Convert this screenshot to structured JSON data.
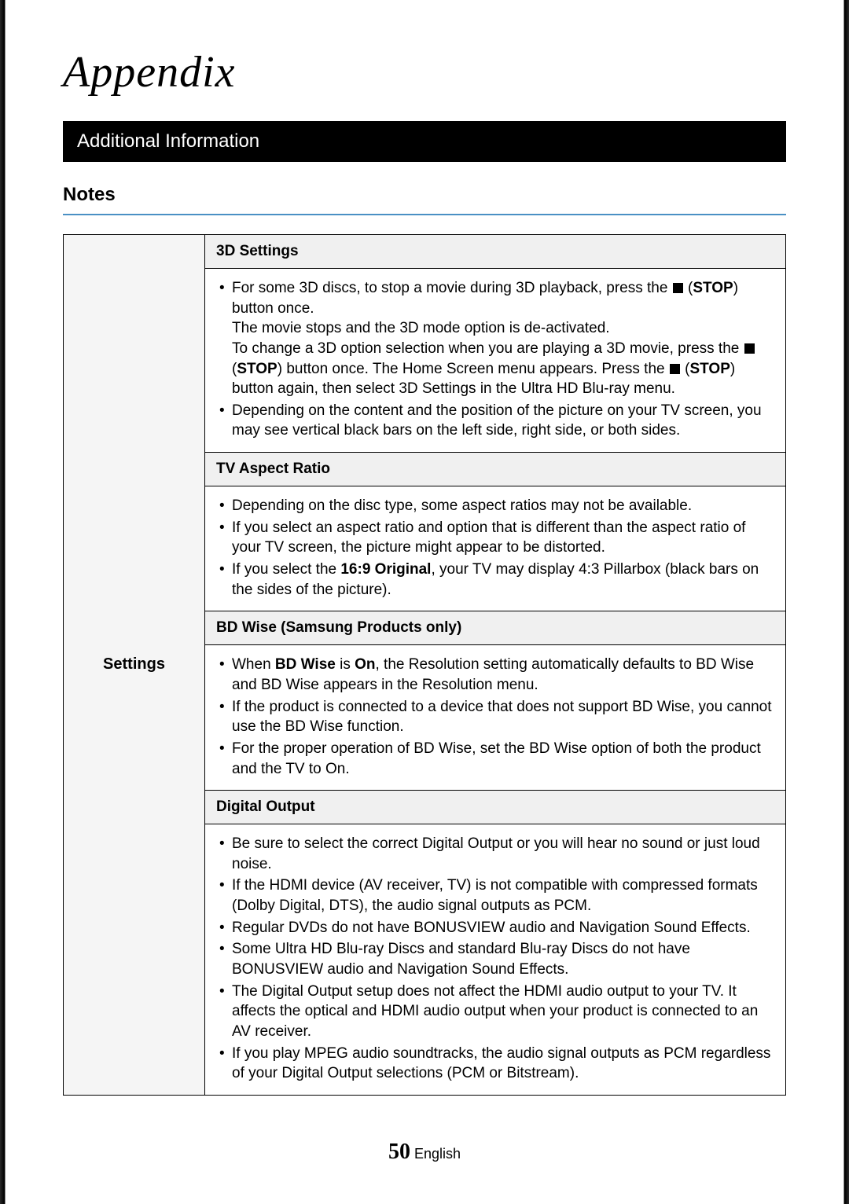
{
  "page_title": "Appendix",
  "section_header": "Additional Information",
  "subsection_title": "Notes",
  "left_label": "Settings",
  "sections": {
    "s3d": {
      "header": "3D Settings",
      "li1_a": "For some 3D discs, to stop a movie during 3D playback, press the ",
      "li1_stop1": "STOP",
      "li1_b": ") button once.",
      "li1_c": "The movie stops and the 3D mode option is de-activated.",
      "li1_d": "To change a 3D option selection when you are playing a 3D movie, press the ",
      "li1_stop2": "STOP",
      "li1_e": ") button once. The Home Screen menu appears. Press the ",
      "li1_stop3": "STOP",
      "li1_f": ") button again, then select 3D Settings in the Ultra HD Blu-ray menu.",
      "li2": "Depending on the content and the position of the picture on your TV screen, you may see vertical black bars on the left side, right side, or both sides."
    },
    "aspect": {
      "header": "TV Aspect Ratio",
      "li1": "Depending on the disc type, some aspect ratios may not be available.",
      "li2": "If you select an aspect ratio and option that is different than the aspect ratio of your TV screen, the picture might appear to be distorted.",
      "li3_a": "If you select the ",
      "li3_bold": "16:9 Original",
      "li3_b": ", your TV may display 4:3 Pillarbox (black bars on the sides of the picture)."
    },
    "bdwise": {
      "header": "BD Wise (Samsung Products only)",
      "li1_a": "When ",
      "li1_b1": "BD Wise",
      "li1_b": " is ",
      "li1_b2": "On",
      "li1_c": ", the Resolution setting automatically defaults to BD Wise and BD Wise appears in the Resolution menu.",
      "li2": "If the product is connected to a device that does not support BD Wise, you cannot use the BD Wise function.",
      "li3": "For the proper operation of BD Wise, set the BD Wise option of both the product and the TV to On."
    },
    "digital": {
      "header": "Digital Output",
      "li1": "Be sure to select the correct Digital Output or you will hear no sound or just loud noise.",
      "li2": "If the HDMI device (AV receiver, TV) is not compatible with compressed formats (Dolby Digital, DTS), the audio signal outputs as PCM.",
      "li3": "Regular DVDs do not have BONUSVIEW audio and Navigation Sound Effects.",
      "li4": "Some Ultra HD Blu-ray Discs and standard Blu-ray Discs do not have BONUSVIEW audio and Navigation Sound Effects.",
      "li5": "The Digital Output setup does not affect the HDMI audio output to your TV. It affects the optical and HDMI audio output when your product is connected to an AV receiver.",
      "li6": "If you play MPEG audio soundtracks, the audio signal outputs as PCM regardless of your Digital Output selections (PCM or Bitstream)."
    }
  },
  "footer": {
    "page_num": "50",
    "lang": "English"
  }
}
